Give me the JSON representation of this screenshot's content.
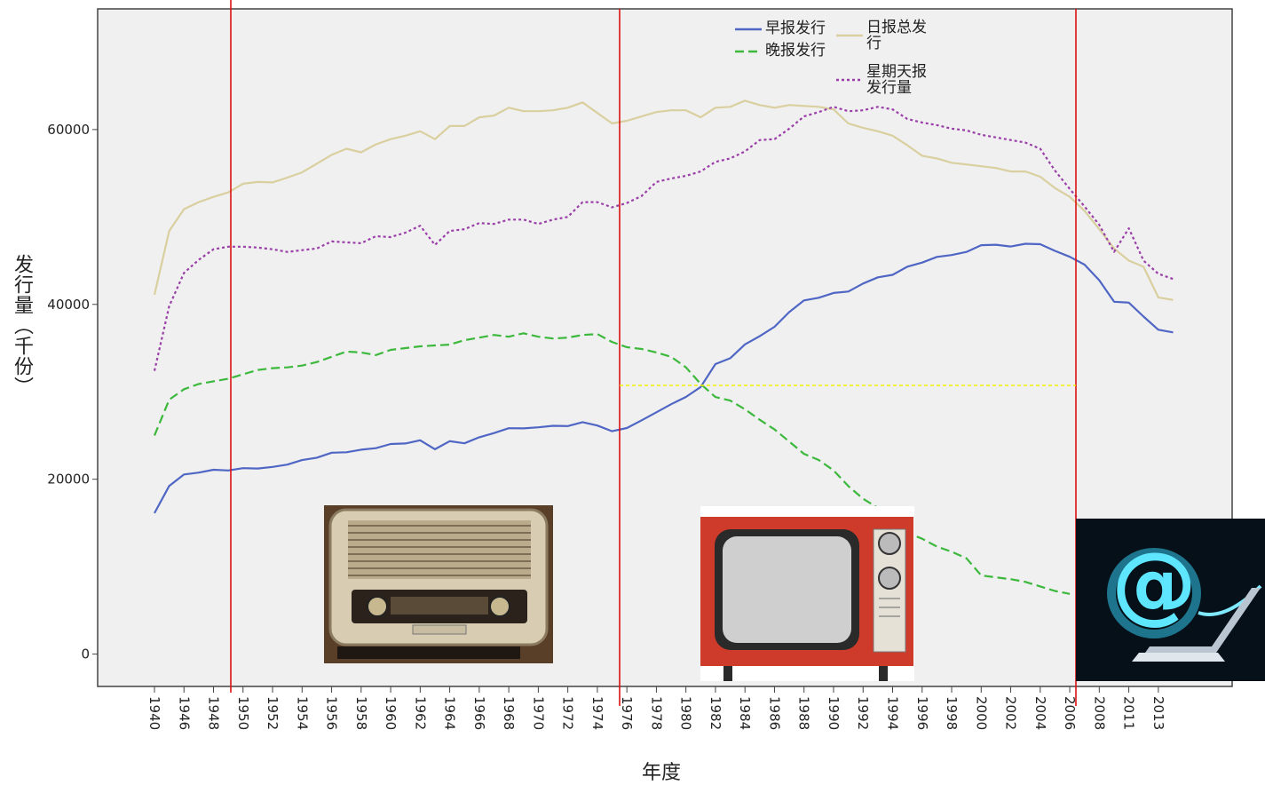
{
  "chart_data": {
    "type": "line",
    "x_label": "年度",
    "y_label": "发行量（千份）",
    "categories": [
      "1940",
      null,
      "1946",
      null,
      "1948",
      null,
      "1950",
      null,
      "1952",
      null,
      "1954",
      null,
      "1956",
      null,
      "1958",
      null,
      "1960",
      null,
      "1962",
      null,
      "1964",
      null,
      "1966",
      null,
      "1968",
      null,
      "1970",
      null,
      "1972",
      null,
      "1974",
      null,
      "1976",
      null,
      "1978",
      null,
      "1980",
      null,
      "1982",
      null,
      "1984",
      null,
      "1986",
      null,
      "1988",
      null,
      "1990",
      null,
      "1992",
      null,
      "1994",
      null,
      "1996",
      null,
      "1998",
      null,
      "2000",
      null,
      "2002",
      null,
      "2004",
      null,
      "2006",
      null,
      "2008",
      null,
      "2011",
      null,
      "2013",
      null
    ],
    "series": [
      {
        "name": "早报发行",
        "color": "#4f66c4",
        "dash": "solid",
        "values": [
          16114,
          19240,
          20545,
          20762,
          21082,
          21004,
          21266,
          21223,
          21411,
          21676,
          22193,
          22469,
          23030,
          23087,
          23375,
          23547,
          24029,
          24094,
          24459,
          23435,
          24357,
          24107,
          24805,
          25282,
          25838,
          25812,
          25934,
          26116,
          26078,
          26524,
          26145,
          25490,
          25858,
          26742,
          27657,
          28575,
          29414,
          30552,
          33174,
          33842,
          35424,
          36362,
          37441,
          39124,
          40453,
          40759,
          41311,
          41470,
          42388,
          43094,
          43382,
          44310,
          44785,
          45434,
          45643,
          45997,
          46772,
          46821,
          46617,
          46930,
          46887,
          46122,
          45441,
          44548,
          42757,
          40300,
          40200,
          38600,
          37100,
          36800
        ]
      },
      {
        "name": "晚报发行",
        "color": "#3cb83c",
        "dash": "dashed",
        "values": [
          25000,
          29100,
          30300,
          30900,
          31200,
          31500,
          32000,
          32500,
          32700,
          32800,
          33000,
          33400,
          34000,
          34600,
          34500,
          34200,
          34800,
          35000,
          35200,
          35300,
          35400,
          35900,
          36200,
          36500,
          36300,
          36700,
          36300,
          36100,
          36200,
          36500,
          36600,
          35700,
          35100,
          34900,
          34500,
          34000,
          32800,
          30900,
          29400,
          29000,
          28000,
          26800,
          25700,
          24300,
          22900,
          22200,
          21017,
          19217,
          17777,
          16718,
          15924,
          13883,
          13193,
          12297,
          11711,
          10960,
          9000,
          8774,
          8568,
          8254,
          7738,
          7222,
          6888,
          null,
          null,
          null,
          null,
          null,
          null,
          null
        ]
      },
      {
        "name": "日报总发行",
        "color": "#d9cf9f",
        "dash": "solid",
        "values": [
          41100,
          48400,
          50900,
          51700,
          52300,
          52800,
          53800,
          54000,
          53950,
          54500,
          55100,
          56100,
          57100,
          57800,
          57400,
          58300,
          58900,
          59300,
          59800,
          58900,
          60400,
          60400,
          61400,
          61600,
          62500,
          62100,
          62100,
          62200,
          62500,
          63100,
          61900,
          60700,
          61000,
          61500,
          62000,
          62200,
          62200,
          61400,
          62500,
          62600,
          63300,
          62800,
          62500,
          62800,
          62700,
          62600,
          62300,
          60700,
          60200,
          59800,
          59300,
          58200,
          57000,
          56700,
          56200,
          56000,
          55800,
          55600,
          55200,
          55200,
          54600,
          53300,
          52300,
          50700,
          48600,
          46400,
          45000,
          44300,
          40800,
          40500
        ]
      },
      {
        "name": "星期天报发行量",
        "color": "#9a3fa8",
        "dash": "dotted",
        "values": [
          32400,
          39800,
          43600,
          45100,
          46300,
          46600,
          46600,
          46500,
          46300,
          46000,
          46200,
          46400,
          47200,
          47100,
          47000,
          47800,
          47700,
          48200,
          49000,
          46800,
          48400,
          48600,
          49300,
          49200,
          49700,
          49700,
          49200,
          49700,
          50000,
          51700,
          51700,
          51100,
          51600,
          52400,
          54000,
          54400,
          54700,
          55200,
          56300,
          56700,
          57500,
          58800,
          58900,
          60100,
          61500,
          62000,
          62600,
          62100,
          62200,
          62600,
          62300,
          61200,
          60800,
          60500,
          60100,
          59900,
          59400,
          59100,
          58800,
          58500,
          57800,
          55300,
          53200,
          51200,
          49100,
          46000,
          48700,
          45000,
          43500,
          42900
        ]
      }
    ],
    "ylim": [
      -3700,
      73800
    ],
    "yticks": [
      0,
      20000,
      40000,
      60000
    ],
    "grid": false
  }
}
